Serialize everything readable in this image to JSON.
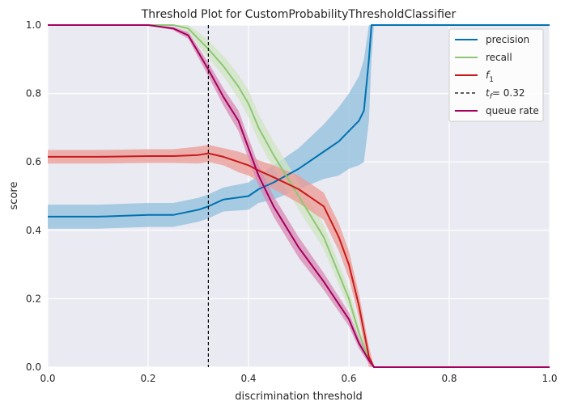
{
  "chart_data": {
    "type": "line",
    "title": "Threshold Plot for CustomProbabilityThresholdClassifier",
    "xlabel": "discrimination threshold",
    "ylabel": "score",
    "xlim": [
      0,
      1
    ],
    "ylim": [
      0,
      1
    ],
    "xticks": [
      "0.0",
      "0.2",
      "0.4",
      "0.6",
      "0.8",
      "1.0"
    ],
    "yticks": [
      "0.0",
      "0.2",
      "0.4",
      "0.6",
      "0.8",
      "1.0"
    ],
    "grid": true,
    "legend_position": "top-right",
    "threshold_line": {
      "x": 0.32,
      "label_var": "t",
      "label_sub": "f",
      "label_value": "= 0.32",
      "color": "#000000"
    },
    "series": [
      {
        "name": "precision",
        "color": "#0072b2",
        "band_color": "#8fbfdb",
        "x": [
          0,
          0.1,
          0.2,
          0.25,
          0.3,
          0.32,
          0.35,
          0.4,
          0.42,
          0.45,
          0.5,
          0.55,
          0.58,
          0.6,
          0.62,
          0.63,
          0.64,
          0.645,
          0.65,
          1.0
        ],
        "y": [
          0.44,
          0.44,
          0.445,
          0.445,
          0.46,
          0.47,
          0.49,
          0.5,
          0.52,
          0.54,
          0.58,
          0.63,
          0.66,
          0.69,
          0.72,
          0.75,
          0.9,
          1.0,
          1.0,
          1.0
        ],
        "band": [
          0.035,
          0.035,
          0.035,
          0.035,
          0.035,
          0.035,
          0.035,
          0.04,
          0.04,
          0.05,
          0.06,
          0.08,
          0.1,
          0.11,
          0.13,
          0.15,
          0.18,
          0.1,
          0.0,
          0.0
        ]
      },
      {
        "name": "recall",
        "color": "#8fc676",
        "band_color": "#cfe6c1",
        "x": [
          0,
          0.1,
          0.2,
          0.25,
          0.28,
          0.3,
          0.32,
          0.35,
          0.38,
          0.4,
          0.42,
          0.45,
          0.5,
          0.55,
          0.6,
          0.62,
          0.64,
          0.65,
          1.0
        ],
        "y": [
          1.0,
          1.0,
          1.0,
          1.0,
          0.99,
          0.96,
          0.93,
          0.88,
          0.82,
          0.77,
          0.7,
          0.62,
          0.5,
          0.38,
          0.2,
          0.1,
          0.02,
          0.0,
          0.0
        ],
        "band": [
          0,
          0,
          0,
          0,
          0.01,
          0.02,
          0.025,
          0.03,
          0.035,
          0.04,
          0.04,
          0.04,
          0.04,
          0.035,
          0.03,
          0.02,
          0.01,
          0.0,
          0.0
        ]
      },
      {
        "name": "f1",
        "name_base": "f",
        "name_sub": "1",
        "color": "#c81a1a",
        "band_color": "#ec9a93",
        "x": [
          0,
          0.1,
          0.2,
          0.25,
          0.3,
          0.32,
          0.35,
          0.38,
          0.4,
          0.42,
          0.45,
          0.5,
          0.55,
          0.58,
          0.6,
          0.62,
          0.64,
          0.65,
          1.0
        ],
        "y": [
          0.615,
          0.615,
          0.617,
          0.617,
          0.62,
          0.625,
          0.615,
          0.6,
          0.59,
          0.575,
          0.555,
          0.52,
          0.47,
          0.38,
          0.3,
          0.18,
          0.03,
          0.0,
          0.0
        ],
        "band": [
          0.02,
          0.02,
          0.02,
          0.02,
          0.025,
          0.025,
          0.025,
          0.03,
          0.03,
          0.03,
          0.035,
          0.04,
          0.04,
          0.04,
          0.04,
          0.035,
          0.03,
          0.0,
          0.0
        ]
      },
      {
        "name": "queue rate",
        "color": "#a4005e",
        "band_color": "#d889b3",
        "x": [
          0,
          0.1,
          0.2,
          0.25,
          0.28,
          0.3,
          0.32,
          0.35,
          0.38,
          0.4,
          0.42,
          0.45,
          0.5,
          0.55,
          0.6,
          0.62,
          0.64,
          0.65,
          1.0
        ],
        "y": [
          1.0,
          1.0,
          1.0,
          0.99,
          0.97,
          0.92,
          0.87,
          0.79,
          0.72,
          0.64,
          0.56,
          0.47,
          0.35,
          0.25,
          0.14,
          0.07,
          0.02,
          0.0,
          0.0
        ],
        "band": [
          0,
          0,
          0,
          0.005,
          0.01,
          0.015,
          0.02,
          0.025,
          0.03,
          0.03,
          0.03,
          0.03,
          0.03,
          0.025,
          0.02,
          0.015,
          0.01,
          0.0,
          0.0
        ]
      }
    ]
  }
}
